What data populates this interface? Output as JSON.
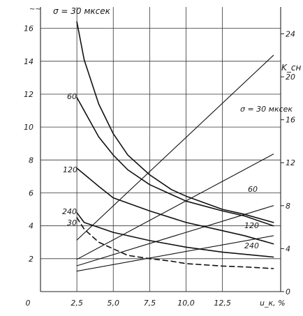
{
  "chart_data": {
    "type": "line",
    "title": "",
    "xlabel": "u_к, %",
    "ylabel_left": "",
    "ylabel_right": "K_сн",
    "x_ticks": [
      "0",
      "2,5",
      "5,0",
      "7,5",
      "10,0",
      "12,5"
    ],
    "y_left_ticks": [
      "2",
      "4",
      "6",
      "8",
      "10",
      "12",
      "14",
      "16"
    ],
    "y_right_ticks": [
      "0",
      "4",
      "8",
      "12",
      "16",
      "20",
      "24"
    ],
    "xlim": [
      0,
      16.5
    ],
    "ylim_left": [
      0,
      17.3
    ],
    "ylim_right": [
      0,
      26.5
    ],
    "grid": true,
    "annotations": {
      "left_group_header": "σ = 30 мксек",
      "right_group_header": "σ = 30 мксек",
      "label_60_left": "60",
      "label_120_left": "120",
      "label_240_left": "240",
      "label_30_dashed": "30",
      "label_60_right": "60",
      "label_120_right": "120",
      "label_240_right": "240",
      "corner_mark": "~~"
    },
    "series": [
      {
        "name": "σ = 30 мксек",
        "axis": "left",
        "style": "solid",
        "x": [
          2.5,
          3.0,
          4.0,
          5.0,
          6.0,
          7.5,
          9.0,
          10.0,
          12.5,
          14.0,
          16.0
        ],
        "y": [
          16.4,
          14.1,
          11.4,
          9.6,
          8.3,
          7.1,
          6.2,
          5.8,
          5.0,
          4.7,
          4.2
        ]
      },
      {
        "name": "60",
        "axis": "left",
        "style": "solid",
        "x": [
          2.5,
          4.0,
          5.0,
          6.0,
          7.5,
          9.0,
          10.0,
          12.5,
          14.0,
          16.0
        ],
        "y": [
          11.8,
          9.4,
          8.3,
          7.4,
          6.5,
          5.9,
          5.5,
          4.9,
          4.6,
          4.0
        ]
      },
      {
        "name": "120",
        "axis": "left",
        "style": "solid",
        "x": [
          2.5,
          4.0,
          5.0,
          7.5,
          10.0,
          12.5,
          14.0,
          16.0
        ],
        "y": [
          7.5,
          6.4,
          5.7,
          4.9,
          4.2,
          3.7,
          3.4,
          2.9
        ]
      },
      {
        "name": "240",
        "axis": "left",
        "style": "solid",
        "x": [
          2.5,
          3.0,
          4.0,
          5.0,
          7.5,
          10.0,
          12.5,
          16.0
        ],
        "y": [
          4.8,
          4.2,
          3.9,
          3.6,
          3.1,
          2.7,
          2.4,
          2.1
        ]
      },
      {
        "name": "30",
        "axis": "left",
        "style": "dashed",
        "x": [
          2.5,
          3.0,
          4.0,
          5.0,
          6.0,
          7.5,
          9.0,
          10.0,
          12.5,
          14.0,
          16.0
        ],
        "y": [
          4.5,
          3.8,
          3.0,
          2.6,
          2.2,
          2.0,
          1.85,
          1.7,
          1.55,
          1.5,
          1.4
        ]
      },
      {
        "name": "K 30",
        "axis": "right",
        "style": "solid",
        "x": [
          2.5,
          16.0
        ],
        "y": [
          4.8,
          22.0
        ]
      },
      {
        "name": "K 60",
        "axis": "right",
        "style": "solid",
        "x": [
          2.5,
          16.0
        ],
        "y": [
          3.0,
          12.8
        ]
      },
      {
        "name": "K 120",
        "axis": "right",
        "style": "solid",
        "x": [
          2.5,
          16.0
        ],
        "y": [
          2.4,
          8.0
        ]
      },
      {
        "name": "K 240",
        "axis": "right",
        "style": "solid",
        "x": [
          2.5,
          16.0
        ],
        "y": [
          1.9,
          5.2
        ]
      }
    ]
  }
}
